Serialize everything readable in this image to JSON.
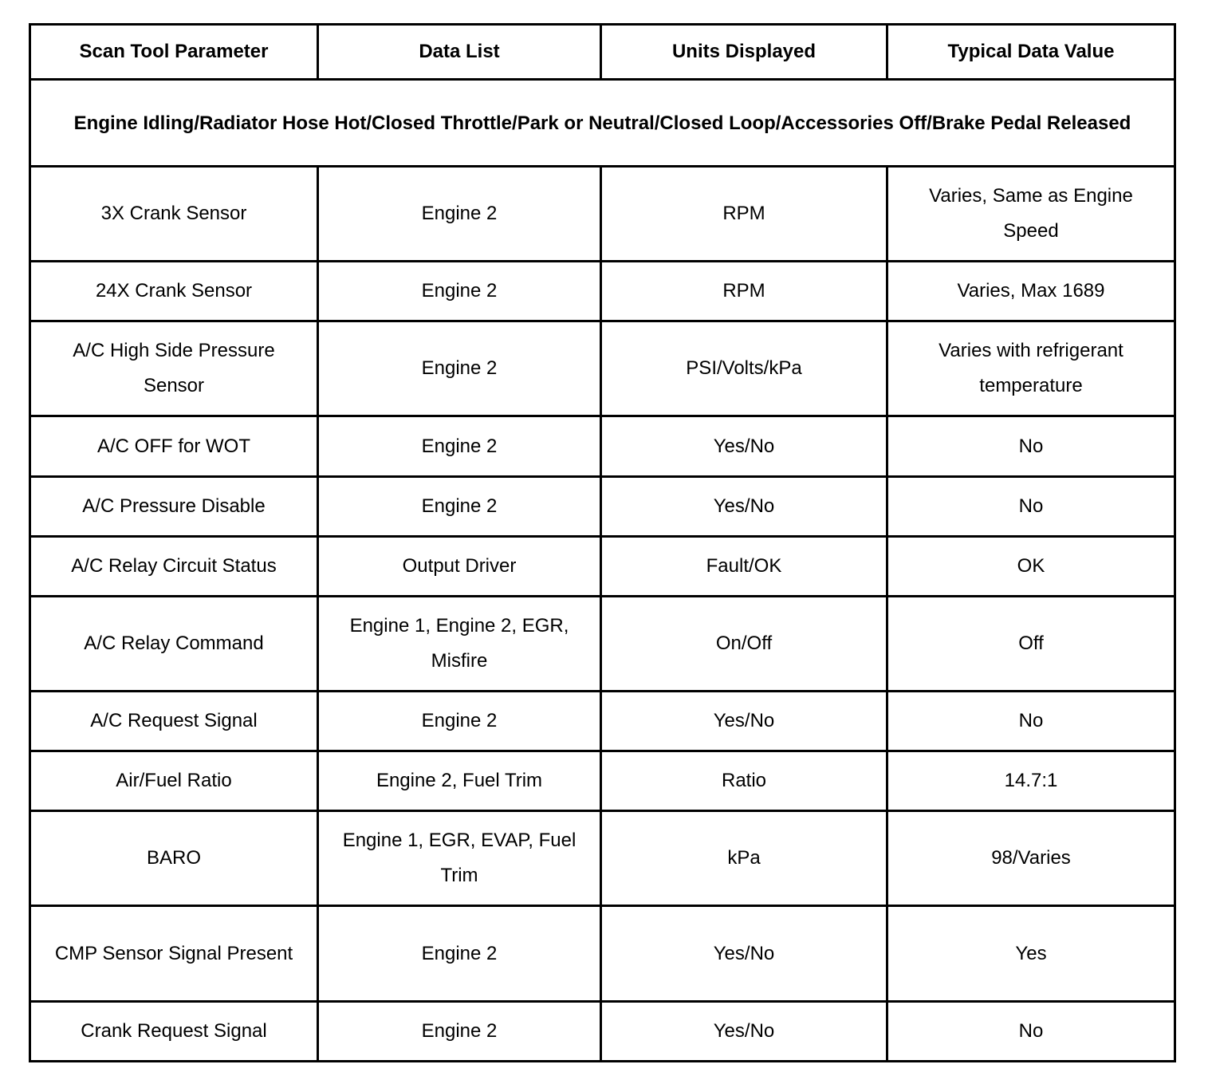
{
  "table": {
    "headers": [
      "Scan Tool Parameter",
      "Data List",
      "Units Displayed",
      "Typical Data Value"
    ],
    "condition": "Engine Idling/Radiator Hose Hot/Closed Throttle/Park or Neutral/Closed Loop/Accessories Off/Brake Pedal Released",
    "rows": [
      [
        "3X Crank Sensor",
        "Engine 2",
        "RPM",
        "Varies, Same as Engine Speed"
      ],
      [
        "24X Crank Sensor",
        "Engine 2",
        "RPM",
        "Varies, Max 1689"
      ],
      [
        "A/C High Side Pressure Sensor",
        "Engine 2",
        "PSI/Volts/kPa",
        "Varies with refrigerant temperature"
      ],
      [
        "A/C OFF for WOT",
        "Engine 2",
        "Yes/No",
        "No"
      ],
      [
        "A/C Pressure Disable",
        "Engine 2",
        "Yes/No",
        "No"
      ],
      [
        "A/C Relay Circuit Status",
        "Output Driver",
        "Fault/OK",
        "OK"
      ],
      [
        "A/C Relay Command",
        "Engine 1, Engine 2, EGR, Misfire",
        "On/Off",
        "Off"
      ],
      [
        "A/C Request Signal",
        "Engine 2",
        "Yes/No",
        "No"
      ],
      [
        "Air/Fuel Ratio",
        "Engine 2, Fuel Trim",
        "Ratio",
        "14.7:1"
      ],
      [
        "BARO",
        "Engine 1, EGR, EVAP, Fuel Trim",
        "kPa",
        "98/Varies"
      ],
      [
        "CMP Sensor Signal Present",
        "Engine 2",
        "Yes/No",
        "Yes"
      ],
      [
        "Crank Request Signal",
        "Engine 2",
        "Yes/No",
        "No"
      ]
    ]
  }
}
